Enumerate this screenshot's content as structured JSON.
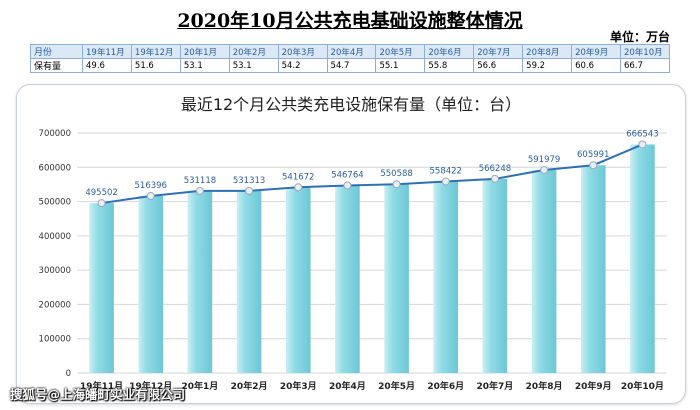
{
  "main_title": "2020年10月公共充电基础设施整体情况",
  "unit_note": "单位：万台",
  "summary_table": {
    "month_label": "月份",
    "value_label": "保有量",
    "months": [
      "19年11月",
      "19年12月",
      "20年1月",
      "20年2月",
      "20年3月",
      "20年4月",
      "20年5月",
      "20年6月",
      "20年7月",
      "20年8月",
      "20年9月",
      "20年10月"
    ],
    "values": [
      "49.6",
      "51.6",
      "53.1",
      "53.1",
      "54.2",
      "54.7",
      "55.1",
      "55.8",
      "56.6",
      "59.2",
      "60.6",
      "66.7"
    ]
  },
  "chart_data": {
    "type": "bar",
    "title": "最近12个月公共类充电设施保有量（单位：台）",
    "categories": [
      "19年11月",
      "19年12月",
      "20年1月",
      "20年2月",
      "20年3月",
      "20年4月",
      "20年5月",
      "20年6月",
      "20年7月",
      "20年8月",
      "20年9月",
      "20年10月"
    ],
    "category_labels": [
      "19年11月",
      "19年12月",
      "20年1月",
      "20年2月",
      "20年3月",
      "20年4月",
      "20年5月",
      "20年6月",
      "20年7月",
      "20年8月",
      "20年9月",
      "20年10月"
    ],
    "series": [
      {
        "type": "bar",
        "values": [
          495502,
          516396,
          531118,
          531313,
          541672,
          546764,
          550588,
          558422,
          566248,
          591979,
          605991,
          666543
        ]
      },
      {
        "type": "line",
        "values": [
          495502,
          516396,
          531118,
          531313,
          541672,
          546764,
          550588,
          558422,
          566248,
          591979,
          605991,
          666543
        ]
      }
    ],
    "data_labels": [
      "495502",
      "516396",
      "531118",
      "531313",
      "541672",
      "546764",
      "550588",
      "558422",
      "566248",
      "591979",
      "605991",
      "666543"
    ],
    "ylim": [
      0,
      700000
    ],
    "yticks": [
      0,
      100000,
      200000,
      300000,
      400000,
      500000,
      600000,
      700000
    ],
    "ytick_labels": [
      "0",
      "100000",
      "200000",
      "300000",
      "400000",
      "500000",
      "600000",
      "700000"
    ],
    "grid": true,
    "colors": {
      "bar": "#7fd3df",
      "bar_light": "#c9eef3",
      "line": "#2f6fb4",
      "marker": "#e9eef5",
      "grid": "#d6d6d6"
    }
  },
  "watermark": "搜狐号@上海皤町实业有限公司"
}
